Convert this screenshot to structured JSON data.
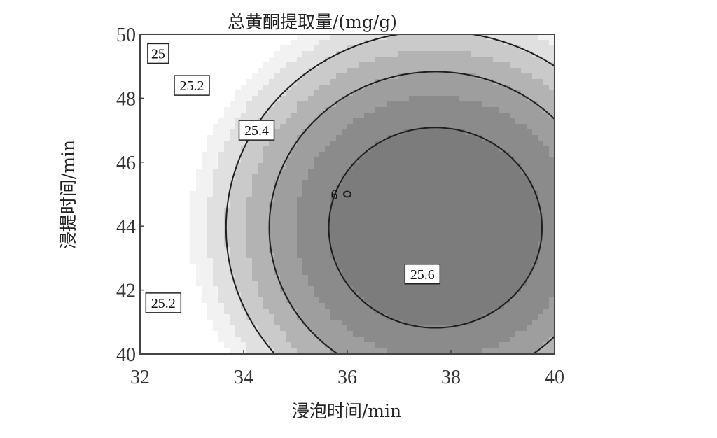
{
  "chart_data": {
    "type": "contour",
    "title": "总黄酮提取量/(mg/g)",
    "xlabel": "浸泡时间/min",
    "ylabel": "浸提时间/min",
    "xlim": [
      32,
      40
    ],
    "ylim": [
      40,
      50
    ],
    "xticks": [
      "32",
      "34",
      "36",
      "38",
      "40"
    ],
    "yticks": [
      "40",
      "42",
      "44",
      "46",
      "48",
      "50"
    ],
    "grid": false,
    "legend": "none",
    "fill_levels": [
      {
        "max_value": 25.0,
        "color": "#ffffff"
      },
      {
        "max_value": 25.1,
        "color": "#f2f2f2"
      },
      {
        "max_value": 25.2,
        "color": "#e0e0e0"
      },
      {
        "max_value": 25.3,
        "color": "#cacaca"
      },
      {
        "max_value": 25.4,
        "color": "#b3b3b3"
      },
      {
        "max_value": 25.5,
        "color": "#9e9e9e"
      },
      {
        "max_value": 25.6,
        "color": "#8b8b8b"
      },
      {
        "max_value": 99,
        "color": "#7c7c7c"
      }
    ],
    "contour_lines": [
      {
        "level": "25.2",
        "label": "25.2"
      },
      {
        "level": "25.4",
        "label": "25.4"
      },
      {
        "level": "25.6",
        "label": "25.6"
      }
    ],
    "labels": [
      {
        "text": "25",
        "x": 32.35,
        "y": 49.4
      },
      {
        "text": "25.2",
        "x": 33.0,
        "y": 48.4
      },
      {
        "text": "25.4",
        "x": 34.25,
        "y": 47.0
      },
      {
        "text": "25.2",
        "x": 32.45,
        "y": 41.6
      },
      {
        "text": "25.6",
        "x": 37.45,
        "y": 42.5
      },
      {
        "text": "6",
        "x": 35.75,
        "y": 45.0
      }
    ],
    "design_point": {
      "x": 36.0,
      "y": 45.0
    }
  }
}
